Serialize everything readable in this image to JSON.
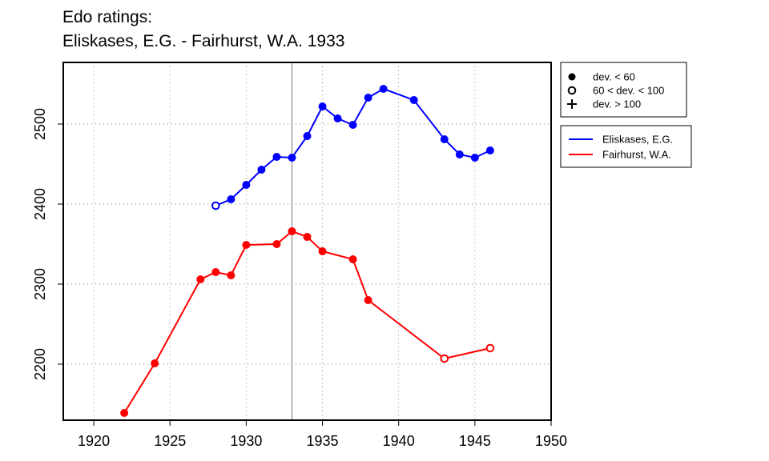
{
  "chart_data": {
    "type": "line",
    "title_line1": "Edo ratings:",
    "title_line2": "Eliskases, E.G. - Fairhurst, W.A. 1933",
    "xlabel": "",
    "ylabel": "",
    "xlim": [
      1918,
      1950
    ],
    "ylim": [
      2130,
      2577
    ],
    "x_ticks": [
      1920,
      1925,
      1930,
      1935,
      1940,
      1945,
      1950
    ],
    "y_ticks": [
      2200,
      2300,
      2400,
      2500
    ],
    "grid": "dotted",
    "vertical_marker": 1933,
    "symbol_legend": [
      {
        "marker": "filled",
        "label": "dev. < 60"
      },
      {
        "marker": "open",
        "label": "60 < dev. < 100"
      },
      {
        "marker": "plus",
        "label": "dev. > 100"
      }
    ],
    "series": [
      {
        "name": "Eliskases, E.G.",
        "color": "#0000ff",
        "points": [
          {
            "x": 1928,
            "y": 2398,
            "marker": "open"
          },
          {
            "x": 1929,
            "y": 2406,
            "marker": "filled"
          },
          {
            "x": 1930,
            "y": 2424,
            "marker": "filled"
          },
          {
            "x": 1931,
            "y": 2443,
            "marker": "filled"
          },
          {
            "x": 1932,
            "y": 2459,
            "marker": "filled"
          },
          {
            "x": 1933,
            "y": 2458,
            "marker": "filled"
          },
          {
            "x": 1934,
            "y": 2485,
            "marker": "filled"
          },
          {
            "x": 1935,
            "y": 2522,
            "marker": "filled"
          },
          {
            "x": 1936,
            "y": 2507,
            "marker": "filled"
          },
          {
            "x": 1937,
            "y": 2499,
            "marker": "filled"
          },
          {
            "x": 1938,
            "y": 2533,
            "marker": "filled"
          },
          {
            "x": 1939,
            "y": 2544,
            "marker": "filled"
          },
          {
            "x": 1941,
            "y": 2530,
            "marker": "filled"
          },
          {
            "x": 1943,
            "y": 2481,
            "marker": "filled"
          },
          {
            "x": 1944,
            "y": 2462,
            "marker": "filled"
          },
          {
            "x": 1945,
            "y": 2458,
            "marker": "filled"
          },
          {
            "x": 1946,
            "y": 2467,
            "marker": "filled"
          }
        ]
      },
      {
        "name": "Fairhurst, W.A.",
        "color": "#ff0000",
        "points": [
          {
            "x": 1922,
            "y": 2139,
            "marker": "filled"
          },
          {
            "x": 1924,
            "y": 2201,
            "marker": "filled"
          },
          {
            "x": 1927,
            "y": 2306,
            "marker": "filled"
          },
          {
            "x": 1928,
            "y": 2315,
            "marker": "filled"
          },
          {
            "x": 1929,
            "y": 2311,
            "marker": "filled"
          },
          {
            "x": 1930,
            "y": 2349,
            "marker": "filled"
          },
          {
            "x": 1932,
            "y": 2350,
            "marker": "filled"
          },
          {
            "x": 1933,
            "y": 2366,
            "marker": "filled"
          },
          {
            "x": 1934,
            "y": 2359,
            "marker": "filled"
          },
          {
            "x": 1935,
            "y": 2341,
            "marker": "filled"
          },
          {
            "x": 1937,
            "y": 2331,
            "marker": "filled"
          },
          {
            "x": 1938,
            "y": 2280,
            "marker": "filled"
          },
          {
            "x": 1943,
            "y": 2207,
            "marker": "open"
          },
          {
            "x": 1946,
            "y": 2220,
            "marker": "open"
          }
        ]
      }
    ]
  }
}
